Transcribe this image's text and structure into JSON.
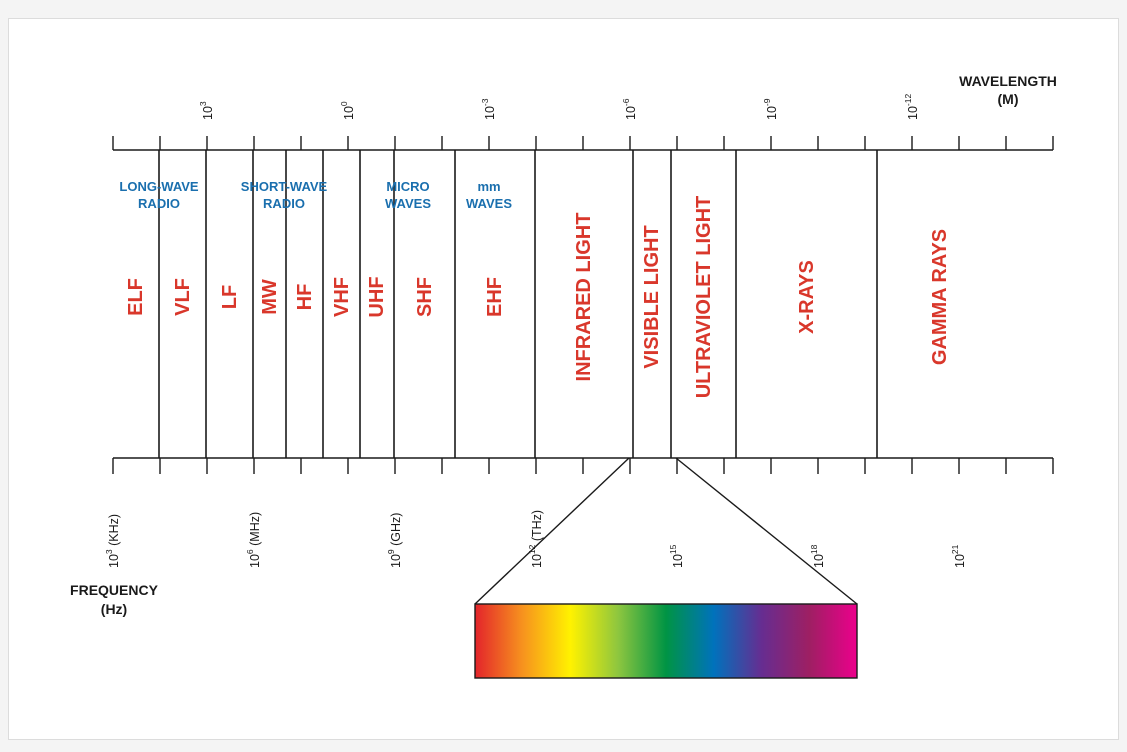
{
  "colors": {
    "band_label": "#d9372b",
    "group_label": "#1a6fae",
    "line": "#1a1a1a"
  },
  "wavelength_axis": {
    "title_line1": "WAVELENGTH",
    "title_line2": "(M)",
    "ticks": [
      {
        "base": "10",
        "exp": "3"
      },
      {
        "base": "10",
        "exp": "0"
      },
      {
        "base": "10",
        "exp": "-3"
      },
      {
        "base": "10",
        "exp": "-6"
      },
      {
        "base": "10",
        "exp": "-9"
      },
      {
        "base": "10",
        "exp": "-12"
      }
    ]
  },
  "frequency_axis": {
    "title_line1": "FREQUENCY",
    "title_line2": "(Hz)",
    "ticks": [
      {
        "base": "10",
        "exp": "3",
        "unit": " (KHz)"
      },
      {
        "base": "10",
        "exp": "6",
        "unit": " (MHz)"
      },
      {
        "base": "10",
        "exp": "9",
        "unit": " (GHz)"
      },
      {
        "base": "10",
        "exp": "12",
        "unit": " (THz)"
      },
      {
        "base": "10",
        "exp": "15",
        "unit": ""
      },
      {
        "base": "10",
        "exp": "18",
        "unit": ""
      },
      {
        "base": "10",
        "exp": "21",
        "unit": ""
      }
    ]
  },
  "groups": [
    {
      "line1": "LONG-WAVE",
      "line2": "RADIO"
    },
    {
      "line1": "SHORT-WAVE",
      "line2": "RADIO"
    },
    {
      "line1": "MICRO",
      "line2": "WAVES"
    },
    {
      "line1": "mm",
      "line2": "WAVES"
    }
  ],
  "bands": [
    "ELF",
    "VLF",
    "LF",
    "MW",
    "HF",
    "VHF",
    "UHF",
    "SHF",
    "EHF",
    "INFRARED LIGHT",
    "VISIBLE LIGHT",
    "ULTRAVIOLET LIGHT",
    "X-RAYS",
    "GAMMA RAYS"
  ],
  "visible_spectrum_colors": [
    "#e3242b",
    "#f7931e",
    "#fff200",
    "#8dc63f",
    "#009444",
    "#0072bc",
    "#662d91",
    "#9e1f63",
    "#ec008c"
  ]
}
